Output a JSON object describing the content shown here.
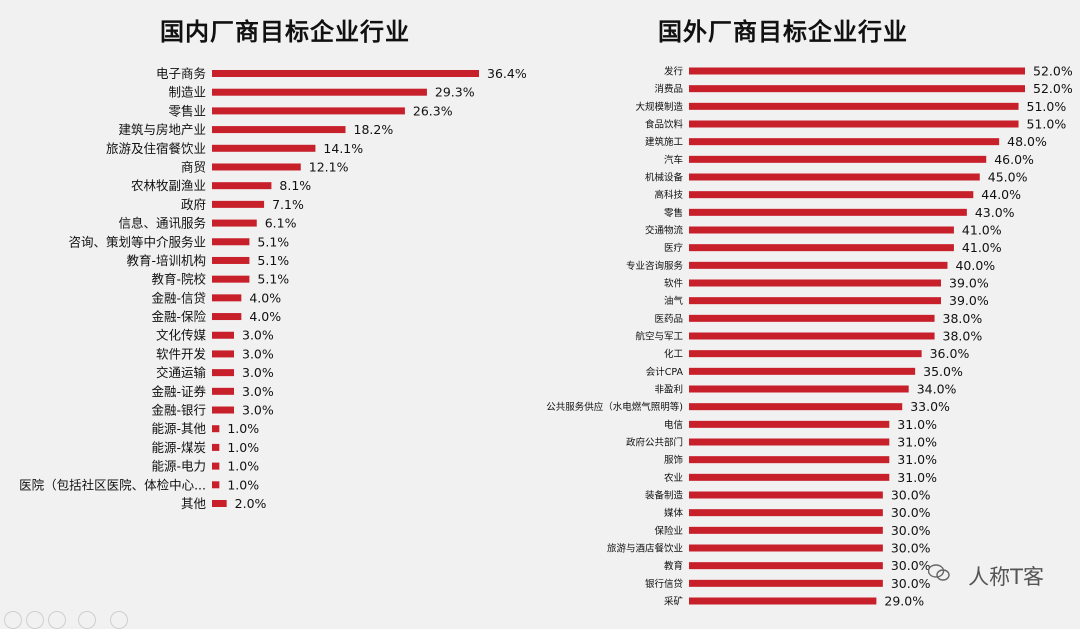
{
  "watermark": {
    "text": "人称T客"
  },
  "colors": {
    "bar": "#c8202b",
    "background": "#f1f1f1",
    "text": "#111111"
  },
  "chart_data": [
    {
      "type": "bar",
      "orientation": "horizontal",
      "title": "国内厂商目标企业行业",
      "xlim": [
        0,
        36.4
      ],
      "categories": [
        "电子商务",
        "制造业",
        "零售业",
        "建筑与房地产业",
        "旅游及住宿餐饮业",
        "商贸",
        "农林牧副渔业",
        "政府",
        "信息、通讯服务",
        "咨询、策划等中介服务业",
        "教育-培训机构",
        "教育-院校",
        "金融-信贷",
        "金融-保险",
        "文化传媒",
        "软件开发",
        "交通运输",
        "金融-证券",
        "金融-银行",
        "能源-其他",
        "能源-煤炭",
        "能源-电力",
        "医院（包括社区医院、体检中心...",
        "其他"
      ],
      "values": [
        36.4,
        29.3,
        26.3,
        18.2,
        14.1,
        12.1,
        8.1,
        7.1,
        6.1,
        5.1,
        5.1,
        5.1,
        4.0,
        4.0,
        3.0,
        3.0,
        3.0,
        3.0,
        3.0,
        1.0,
        1.0,
        1.0,
        1.0,
        2.0
      ],
      "labels": [
        "36.4%",
        "29.3%",
        "26.3%",
        "18.2%",
        "14.1%",
        "12.1%",
        "8.1%",
        "7.1%",
        "6.1%",
        "5.1%",
        "5.1%",
        "5.1%",
        "4.0%",
        "4.0%",
        "3.0%",
        "3.0%",
        "3.0%",
        "3.0%",
        "3.0%",
        "1.0%",
        "1.0%",
        "1.0%",
        "1.0%",
        "2.0%"
      ]
    },
    {
      "type": "bar",
      "orientation": "horizontal",
      "title": "国外厂商目标企业行业",
      "xlim": [
        0,
        52.0
      ],
      "categories": [
        "发行",
        "消费品",
        "大规模制造",
        "食品饮料",
        "建筑施工",
        "汽车",
        "机械设备",
        "高科技",
        "零售",
        "交通物流",
        "医疗",
        "专业咨询服务",
        "软件",
        "油气",
        "医药品",
        "航空与军工",
        "化工",
        "会计CPA",
        "非盈利",
        "公共服务供应（水电燃气照明等)",
        "电信",
        "政府公共部门",
        "服饰",
        "农业",
        "装备制造",
        "媒体",
        "保险业",
        "旅游与酒店餐饮业",
        "教育",
        "银行信贷",
        "采矿"
      ],
      "values": [
        52.0,
        52.0,
        51.0,
        51.0,
        48.0,
        46.0,
        45.0,
        44.0,
        43.0,
        41.0,
        41.0,
        40.0,
        39.0,
        39.0,
        38.0,
        38.0,
        36.0,
        35.0,
        34.0,
        33.0,
        31.0,
        31.0,
        31.0,
        31.0,
        30.0,
        30.0,
        30.0,
        30.0,
        30.0,
        30.0,
        29.0
      ],
      "labels": [
        "52.0%",
        "52.0%",
        "51.0%",
        "51.0%",
        "48.0%",
        "46.0%",
        "45.0%",
        "44.0%",
        "43.0%",
        "41.0%",
        "41.0%",
        "40.0%",
        "39.0%",
        "39.0%",
        "38.0%",
        "38.0%",
        "36.0%",
        "35.0%",
        "34.0%",
        "33.0%",
        "31.0%",
        "31.0%",
        "31.0%",
        "31.0%",
        "30.0%",
        "30.0%",
        "30.0%",
        "30.0%",
        "30.0%",
        "30.0%",
        "29.0%"
      ]
    }
  ]
}
